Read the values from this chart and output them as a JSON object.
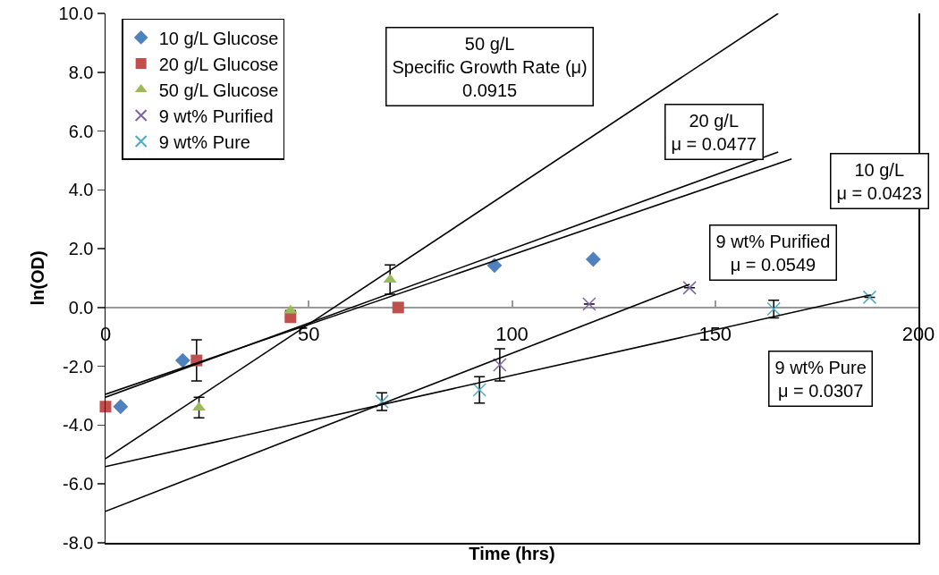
{
  "chart_data": {
    "type": "scatter",
    "xlabel": "Time (hrs)",
    "ylabel": "ln(OD)",
    "xlim": [
      0,
      200
    ],
    "xticks": [
      0,
      50,
      100,
      150,
      200
    ],
    "ylim": [
      -8,
      10
    ],
    "yticks": [
      {
        "value": -8,
        "label": "-8.0"
      },
      {
        "value": -6,
        "label": "-6.0"
      },
      {
        "value": -4,
        "label": "-4.0"
      },
      {
        "value": -2,
        "label": "-2.0"
      },
      {
        "value": 0,
        "label": "0.0"
      },
      {
        "value": 2,
        "label": "2.0"
      },
      {
        "value": 4,
        "label": "4.0"
      },
      {
        "value": 6,
        "label": "6.0"
      },
      {
        "value": 8,
        "label": "8.0"
      },
      {
        "value": 10,
        "label": "10.0"
      }
    ],
    "grid": false,
    "legend": "top left",
    "series": [
      {
        "name": "10 g/L Glucose",
        "color": "#4f81bd",
        "marker": "diamond",
        "x": [
          3.7,
          19,
          95.7,
          120
        ],
        "values": [
          -3.37,
          -1.8,
          1.43,
          1.64
        ]
      },
      {
        "name": "20 g/L Glucose",
        "color": "#c0504d",
        "marker": "square",
        "x": [
          0,
          22.4,
          45.5,
          72
        ],
        "values": [
          -3.37,
          -1.8,
          -0.33,
          0.0
        ],
        "errors": [
          null,
          0.7,
          null,
          null
        ]
      },
      {
        "name": "50 g/L Glucose",
        "color": "#9bbb59",
        "marker": "triangle",
        "x": [
          23,
          45.5,
          70
        ],
        "values": [
          -3.4,
          -0.1,
          0.95
        ],
        "errors": [
          0.35,
          null,
          0.5
        ]
      },
      {
        "name": "9 wt% Purified",
        "color": "#8064a2",
        "marker": "cross",
        "x": [
          97,
          119,
          143.7
        ],
        "values": [
          -1.95,
          0.12,
          0.67
        ],
        "errors": [
          0.55,
          null,
          null
        ]
      },
      {
        "name": "9 wt% Pure",
        "color": "#4bacc6",
        "marker": "cross",
        "x": [
          68,
          92,
          164.4,
          188
        ],
        "values": [
          -3.2,
          -2.8,
          -0.05,
          0.35
        ],
        "errors": [
          0.3,
          0.45,
          0.3,
          null
        ]
      },
      {
        "type": "line",
        "color": "#000000",
        "x": [
          0,
          168.8
        ],
        "values": [
          -2.95,
          5.05
        ]
      },
      {
        "type": "line",
        "color": "#000000",
        "x": [
          0,
          165.5
        ],
        "values": [
          -3.05,
          5.29
        ]
      },
      {
        "type": "line",
        "color": "#000000",
        "x": [
          0,
          165.5
        ],
        "values": [
          -5.14,
          10
        ]
      },
      {
        "type": "line",
        "color": "#000000",
        "x": [
          0,
          143.7
        ],
        "values": [
          -6.93,
          0.79
        ]
      },
      {
        "type": "line",
        "color": "#000000",
        "x": [
          0,
          188.3
        ],
        "values": [
          -5.41,
          0.43
        ]
      }
    ],
    "annotations": [
      "50 g/L\nSpecific Growth Rate (μ)\n0.0915",
      "20 g/L\nμ = 0.0477",
      "10 g/L\nμ = 0.0423",
      "9 wt% Purified\nμ = 0.0549",
      "9 wt% Pure\nμ = 0.0307"
    ]
  }
}
